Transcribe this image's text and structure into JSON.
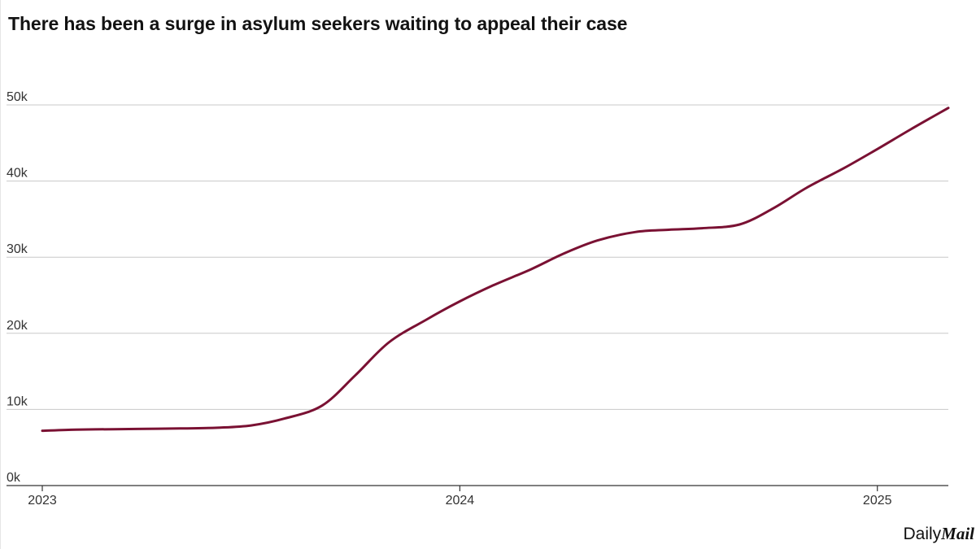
{
  "chart_data": {
    "type": "line",
    "title": "There has been a surge in asylum seekers waiting to appeal their case",
    "xlabel": "",
    "ylabel": "",
    "xlim": [
      2023.0,
      2025.17
    ],
    "ylim": [
      0,
      50000
    ],
    "y_ticks": [
      0,
      10000,
      20000,
      30000,
      40000,
      50000
    ],
    "y_tick_labels": [
      "0k",
      "10k",
      "20k",
      "30k",
      "40k",
      "50k"
    ],
    "x_ticks": [
      2023,
      2024,
      2025
    ],
    "x_tick_labels": [
      "2023",
      "2024",
      "2025"
    ],
    "grid": true,
    "series": [
      {
        "name": "Asylum seekers waiting to appeal",
        "color": "#7a1133",
        "x": [
          2023.0,
          2023.08,
          2023.17,
          2023.25,
          2023.33,
          2023.42,
          2023.5,
          2023.58,
          2023.67,
          2023.75,
          2023.83,
          2023.92,
          2024.0,
          2024.08,
          2024.17,
          2024.25,
          2024.33,
          2024.42,
          2024.5,
          2024.58,
          2024.67,
          2024.75,
          2024.83,
          2024.92,
          2025.0,
          2025.08,
          2025.17
        ],
        "values": [
          7200,
          7350,
          7400,
          7450,
          7500,
          7600,
          7900,
          8800,
          10500,
          14500,
          18800,
          21800,
          24200,
          26300,
          28400,
          30500,
          32200,
          33300,
          33600,
          33800,
          34300,
          36400,
          39100,
          41700,
          44200,
          46800,
          49600
        ]
      }
    ]
  },
  "footer": {
    "brand_daily": "Daily",
    "brand_mail": "Mail"
  }
}
